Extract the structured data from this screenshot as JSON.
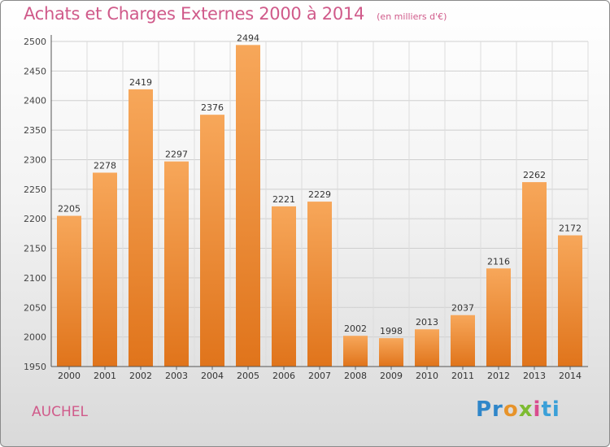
{
  "chart_data": {
    "type": "bar",
    "title": "Achats et Charges Externes 2000 à 2014",
    "subtitle": "(en milliers d'€)",
    "categories": [
      "2000",
      "2001",
      "2002",
      "2003",
      "2004",
      "2005",
      "2006",
      "2007",
      "2008",
      "2009",
      "2010",
      "2011",
      "2012",
      "2013",
      "2014"
    ],
    "values": [
      2205,
      2278,
      2419,
      2297,
      2376,
      2494,
      2221,
      2229,
      2002,
      1998,
      2013,
      2037,
      2116,
      2262,
      2172
    ],
    "ylim": [
      1950,
      2500
    ],
    "yticks": [
      1950,
      2000,
      2050,
      2100,
      2150,
      2200,
      2250,
      2300,
      2350,
      2400,
      2450,
      2500
    ],
    "grid": true,
    "bar_color": "#f08a2a",
    "xlabel": "",
    "ylabel": ""
  },
  "footer": {
    "commune": "AUCHEL",
    "brand_letters": [
      "Pr",
      "o",
      "x",
      "i",
      "ti"
    ]
  }
}
